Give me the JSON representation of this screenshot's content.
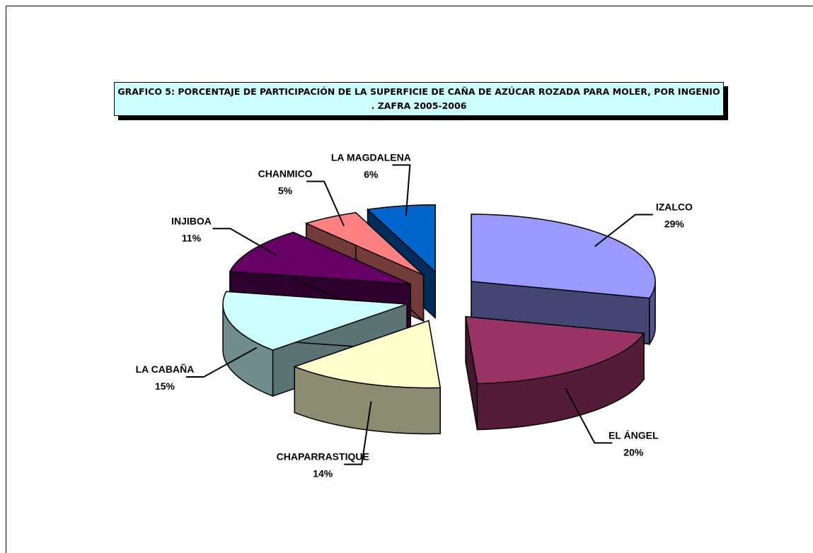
{
  "chart_data": {
    "type": "pie",
    "title": "GRAFICO 5: PORCENTAJE DE PARTICIPACIÓN DE LA SUPERFICIE DE CAÑA DE AZÚCAR ROZADA PARA MOLER, POR INGENIO . ZAFRA  2005-2006",
    "categories": [
      "IZALCO",
      "EL ÁNGEL",
      "CHAPARRASTIQUE",
      "LA CABAÑA",
      "INJIBOA",
      "CHANMICO",
      "LA MAGDALENA"
    ],
    "values": [
      29,
      20,
      14,
      15,
      11,
      5,
      6
    ],
    "value_labels": [
      "29%",
      "20%",
      "14%",
      "15%",
      "11%",
      "5%",
      "6%"
    ],
    "colors": [
      "#9999ff",
      "#993366",
      "#ffffcc",
      "#ccffff",
      "#660066",
      "#ff8080",
      "#0066cc"
    ]
  }
}
